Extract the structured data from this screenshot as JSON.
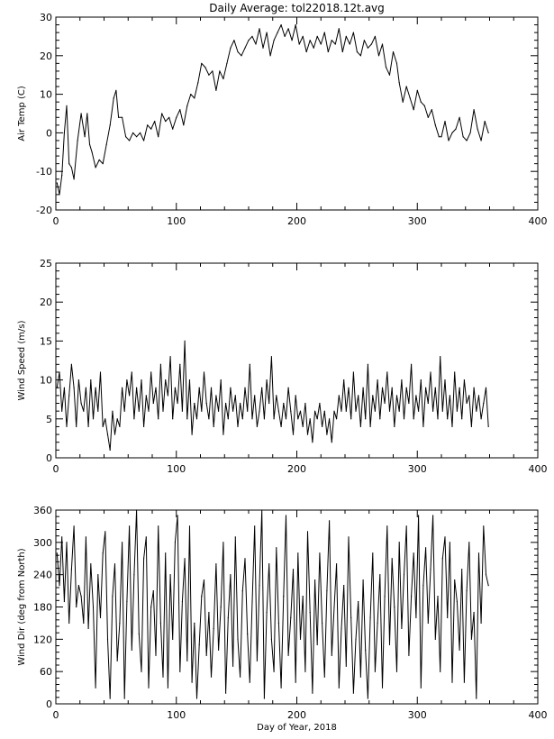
{
  "chart_data": [
    {
      "type": "line",
      "title": "Daily Average: tol22018.12t.avg",
      "xlabel": "",
      "ylabel": "Air Temp (C)",
      "xlim": [
        0,
        400
      ],
      "ylim": [
        -20,
        30
      ],
      "xticks": [
        0,
        100,
        200,
        300,
        400
      ],
      "yticks": [
        -20,
        -10,
        0,
        10,
        20,
        30
      ],
      "grid": false,
      "series": [
        {
          "x": [
            1,
            3,
            5,
            7,
            9,
            11,
            13,
            15,
            18,
            21,
            24,
            26,
            28,
            30,
            33,
            36,
            39,
            42,
            45,
            48,
            50,
            52,
            55,
            58,
            61,
            64,
            67,
            70,
            73,
            76,
            79,
            82,
            85,
            88,
            91,
            94,
            97,
            100,
            103,
            106,
            109,
            112,
            115,
            118,
            121,
            124,
            127,
            130,
            133,
            136,
            139,
            142,
            145,
            148,
            151,
            154,
            157,
            160,
            163,
            166,
            169,
            172,
            175,
            178,
            181,
            184,
            187,
            190,
            193,
            196,
            199,
            202,
            205,
            208,
            211,
            214,
            217,
            220,
            223,
            226,
            229,
            232,
            235,
            238,
            241,
            244,
            247,
            250,
            253,
            256,
            259,
            262,
            265,
            268,
            271,
            274,
            277,
            280,
            283,
            285,
            288,
            291,
            294,
            297,
            300,
            303,
            306,
            309,
            312,
            315,
            318,
            320,
            323,
            326,
            329,
            332,
            335,
            338,
            341,
            344,
            347,
            350,
            353,
            356,
            359
          ],
          "y": [
            -13,
            -16,
            -11,
            0,
            7,
            -8,
            -9,
            -12,
            -2,
            5,
            -1,
            5,
            -3,
            -5,
            -9,
            -7,
            -8,
            -3,
            2,
            9,
            11,
            4,
            4,
            -1,
            -2,
            0,
            -1,
            0,
            -2,
            2,
            1,
            3,
            -1,
            5,
            3,
            4,
            1,
            4,
            6,
            2,
            7,
            10,
            9,
            13,
            18,
            17,
            15,
            16,
            11,
            16,
            14,
            18,
            22,
            24,
            21,
            20,
            22,
            24,
            25,
            23,
            27,
            22,
            26,
            20,
            24,
            26,
            28,
            25,
            27,
            24,
            28,
            23,
            25,
            21,
            24,
            22,
            25,
            23,
            26,
            21,
            24,
            23,
            27,
            21,
            25,
            23,
            26,
            21,
            20,
            24,
            22,
            23,
            25,
            20,
            23,
            17,
            15,
            21,
            18,
            13,
            8,
            12,
            9,
            6,
            11,
            8,
            7,
            4,
            6,
            2,
            -1,
            -1,
            3,
            -2,
            0,
            1,
            4,
            -1,
            -2,
            0,
            6,
            1,
            -2,
            3,
            0
          ]
        }
      ]
    },
    {
      "type": "line",
      "title": "",
      "xlabel": "",
      "ylabel": "Wind Speed (m/s)",
      "xlim": [
        0,
        400
      ],
      "ylim": [
        0,
        25
      ],
      "xticks": [
        0,
        100,
        200,
        300,
        400
      ],
      "yticks": [
        0,
        5,
        10,
        15,
        20,
        25
      ],
      "grid": false,
      "series": [
        {
          "x": [
            1,
            3,
            5,
            7,
            9,
            11,
            13,
            15,
            17,
            19,
            21,
            23,
            25,
            27,
            29,
            31,
            33,
            35,
            37,
            39,
            41,
            43,
            45,
            47,
            49,
            51,
            53,
            55,
            57,
            59,
            61,
            63,
            65,
            67,
            69,
            71,
            73,
            75,
            77,
            79,
            81,
            83,
            85,
            87,
            89,
            91,
            93,
            95,
            97,
            99,
            101,
            103,
            105,
            107,
            109,
            111,
            113,
            115,
            117,
            119,
            121,
            123,
            125,
            127,
            129,
            131,
            133,
            135,
            137,
            139,
            141,
            143,
            145,
            147,
            149,
            151,
            153,
            155,
            157,
            159,
            161,
            163,
            165,
            167,
            169,
            171,
            173,
            175,
            177,
            179,
            181,
            183,
            185,
            187,
            189,
            191,
            193,
            195,
            197,
            199,
            201,
            203,
            205,
            207,
            209,
            211,
            213,
            215,
            217,
            219,
            221,
            223,
            225,
            227,
            229,
            231,
            233,
            235,
            237,
            239,
            241,
            243,
            245,
            247,
            249,
            251,
            253,
            255,
            257,
            259,
            261,
            263,
            265,
            267,
            269,
            271,
            273,
            275,
            277,
            279,
            281,
            283,
            285,
            287,
            289,
            291,
            293,
            295,
            297,
            299,
            301,
            303,
            305,
            307,
            309,
            311,
            313,
            315,
            317,
            319,
            321,
            323,
            325,
            327,
            329,
            331,
            333,
            335,
            337,
            339,
            341,
            343,
            345,
            347,
            349,
            351,
            353,
            355,
            357,
            359
          ],
          "y": [
            9,
            11,
            6,
            9,
            4,
            8,
            12,
            9,
            4,
            10,
            7,
            6,
            9,
            4,
            10,
            5,
            9,
            6,
            11,
            4,
            5,
            3,
            1,
            6,
            3,
            5,
            4,
            9,
            6,
            10,
            8,
            11,
            5,
            9,
            6,
            10,
            4,
            8,
            6,
            11,
            7,
            9,
            5,
            12,
            6,
            10,
            8,
            13,
            5,
            9,
            7,
            12,
            6,
            15,
            5,
            10,
            3,
            7,
            5,
            9,
            6,
            11,
            7,
            5,
            9,
            4,
            8,
            6,
            10,
            3,
            7,
            5,
            9,
            6,
            8,
            4,
            7,
            5,
            9,
            6,
            12,
            5,
            8,
            4,
            6,
            9,
            5,
            10,
            7,
            13,
            5,
            8,
            6,
            4,
            7,
            5,
            9,
            6,
            3,
            8,
            5,
            6,
            4,
            7,
            3,
            5,
            2,
            6,
            5,
            7,
            4,
            6,
            3,
            5,
            2,
            6,
            5,
            8,
            6,
            10,
            6,
            9,
            5,
            11,
            6,
            8,
            4,
            9,
            5,
            12,
            4,
            8,
            6,
            10,
            5,
            9,
            7,
            11,
            6,
            9,
            4,
            8,
            6,
            10,
            5,
            9,
            7,
            12,
            5,
            8,
            6,
            10,
            4,
            9,
            7,
            11,
            6,
            9,
            5,
            13,
            6,
            10,
            5,
            8,
            4,
            11,
            6,
            9,
            5,
            10,
            7,
            8,
            4,
            9,
            6,
            8,
            5,
            7,
            9,
            4
          ]
        }
      ]
    },
    {
      "type": "line",
      "title": "",
      "xlabel": "Day of Year, 2018",
      "ylabel": "Wind Dir (deg from North)",
      "xlim": [
        0,
        400
      ],
      "ylim": [
        0,
        360
      ],
      "xticks": [
        0,
        100,
        200,
        300,
        400
      ],
      "yticks": [
        0,
        60,
        120,
        180,
        240,
        300,
        360
      ],
      "grid": false,
      "series": [
        {
          "x": [
            1,
            3,
            5,
            7,
            9,
            11,
            13,
            15,
            17,
            19,
            21,
            23,
            25,
            27,
            29,
            31,
            33,
            35,
            37,
            39,
            41,
            43,
            45,
            47,
            49,
            51,
            53,
            55,
            57,
            59,
            61,
            63,
            65,
            67,
            69,
            71,
            73,
            75,
            77,
            79,
            81,
            83,
            85,
            87,
            89,
            91,
            93,
            95,
            97,
            99,
            101,
            103,
            105,
            107,
            109,
            111,
            113,
            115,
            117,
            119,
            121,
            123,
            125,
            127,
            129,
            131,
            133,
            135,
            137,
            139,
            141,
            143,
            145,
            147,
            149,
            151,
            153,
            155,
            157,
            159,
            161,
            163,
            165,
            167,
            169,
            171,
            173,
            175,
            177,
            179,
            181,
            183,
            185,
            187,
            189,
            191,
            193,
            195,
            197,
            199,
            201,
            203,
            205,
            207,
            209,
            211,
            213,
            215,
            217,
            219,
            221,
            223,
            225,
            227,
            229,
            231,
            233,
            235,
            237,
            239,
            241,
            243,
            245,
            247,
            249,
            251,
            253,
            255,
            257,
            259,
            261,
            263,
            265,
            267,
            269,
            271,
            273,
            275,
            277,
            279,
            281,
            283,
            285,
            287,
            289,
            291,
            293,
            295,
            297,
            299,
            301,
            303,
            305,
            307,
            309,
            311,
            313,
            315,
            317,
            319,
            321,
            323,
            325,
            327,
            329,
            331,
            333,
            335,
            337,
            339,
            341,
            343,
            345,
            347,
            349,
            351,
            353,
            355,
            357,
            359
          ],
          "y": [
            280,
            220,
            310,
            190,
            300,
            150,
            250,
            330,
            180,
            220,
            200,
            150,
            310,
            140,
            260,
            180,
            30,
            240,
            160,
            280,
            320,
            120,
            10,
            200,
            260,
            80,
            150,
            300,
            10,
            190,
            330,
            100,
            240,
            360,
            130,
            60,
            270,
            310,
            30,
            180,
            210,
            90,
            330,
            150,
            50,
            280,
            30,
            240,
            120,
            300,
            350,
            60,
            190,
            270,
            80,
            330,
            40,
            150,
            10,
            110,
            200,
            230,
            90,
            170,
            50,
            140,
            260,
            100,
            180,
            300,
            20,
            160,
            240,
            70,
            310,
            120,
            50,
            210,
            270,
            130,
            40,
            190,
            330,
            80,
            220,
            360,
            10,
            170,
            260,
            120,
            60,
            290,
            150,
            30,
            200,
            350,
            90,
            160,
            250,
            40,
            280,
            120,
            200,
            60,
            320,
            170,
            20,
            230,
            110,
            280,
            150,
            50,
            210,
            340,
            90,
            180,
            260,
            30,
            140,
            220,
            70,
            310,
            160,
            20,
            120,
            190,
            50,
            230,
            100,
            10,
            160,
            280,
            60,
            150,
            240,
            30,
            200,
            330,
            110,
            270,
            180,
            60,
            300,
            140,
            240,
            330,
            90,
            200,
            280,
            160,
            350,
            30,
            220,
            290,
            150,
            250,
            350,
            120,
            200,
            60,
            270,
            310,
            160,
            300,
            40,
            230,
            190,
            100,
            250,
            40,
            210,
            300,
            120,
            170,
            10,
            280,
            150,
            330,
            240,
            220
          ]
        }
      ]
    }
  ]
}
